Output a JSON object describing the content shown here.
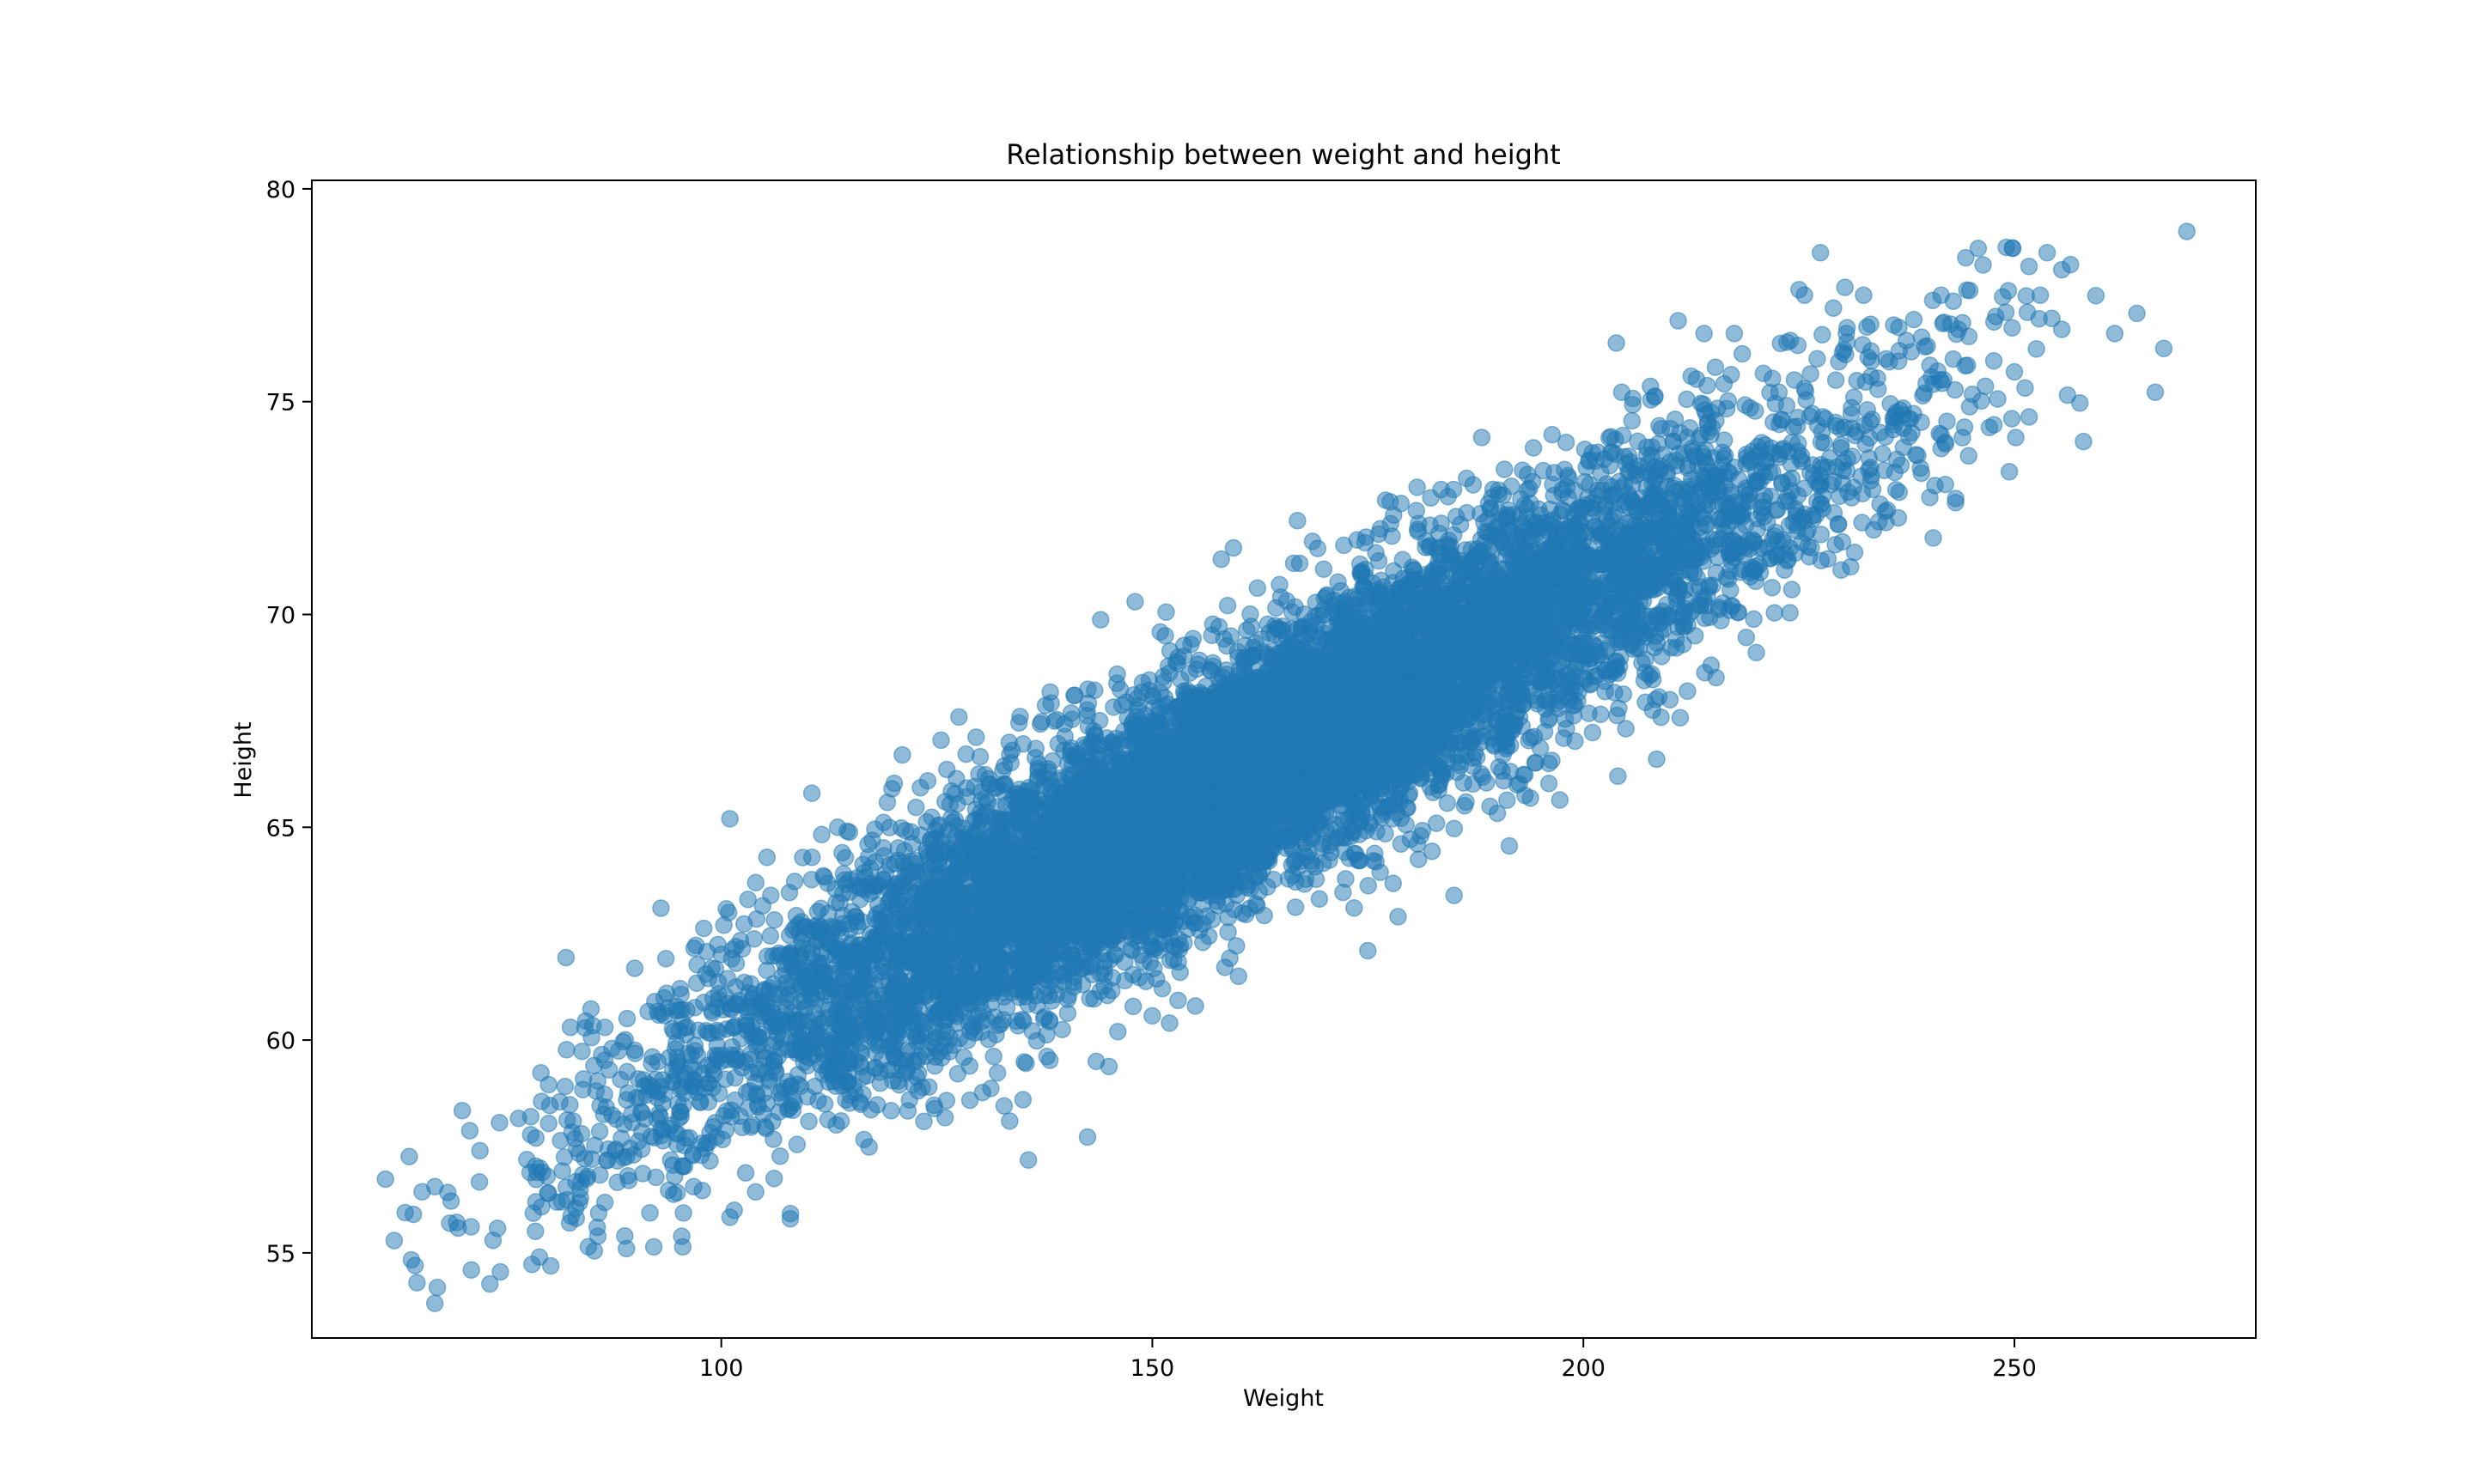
{
  "chart_data": {
    "type": "scatter",
    "title": "Relationship between weight and height",
    "xlabel": "Weight",
    "ylabel": "Height",
    "xlim": [
      52.5,
      278
    ],
    "ylim": [
      53,
      80.2
    ],
    "xticks": [
      100,
      150,
      200,
      250
    ],
    "xtick_labels": [
      "100",
      "150",
      "200",
      "250"
    ],
    "yticks": [
      55,
      60,
      65,
      70,
      75,
      80
    ],
    "ytick_labels": [
      "55",
      "60",
      "65",
      "70",
      "75",
      "80"
    ],
    "grid": false,
    "legend": false,
    "marker_color": "#1f77b4",
    "marker_alpha": 0.5,
    "generated_cloud": {
      "count": 10000,
      "x_mean": 161.4,
      "x_sd": 32.1,
      "y_mean": 66.37,
      "y_sd": 3.85,
      "correlation": 0.92
    },
    "visible_points": [
      [
        64.7,
        54.3
      ],
      [
        68.5,
        55.7
      ],
      [
        71.0,
        54.6
      ],
      [
        72.0,
        57.4
      ],
      [
        77.9,
        58.2
      ],
      [
        78.5,
        56.2
      ],
      [
        78.9,
        54.9
      ],
      [
        79.8,
        56.8
      ],
      [
        81.5,
        56.2
      ],
      [
        82.5,
        60.3
      ],
      [
        83.8,
        57.8
      ],
      [
        84.5,
        56.8
      ],
      [
        85.6,
        55.6
      ],
      [
        86.5,
        60.3
      ],
      [
        87.0,
        59.3
      ],
      [
        88.8,
        55.4
      ],
      [
        89.0,
        55.1
      ],
      [
        93.0,
        63.1
      ],
      [
        96.0,
        60.7
      ],
      [
        100.3,
        62.7
      ],
      [
        101.0,
        65.2
      ],
      [
        104.0,
        63.7
      ],
      [
        108.0,
        55.8
      ],
      [
        110.5,
        65.8
      ],
      [
        101.5,
        56.0
      ],
      [
        107.0,
        62.0
      ],
      [
        112.0,
        58.5
      ],
      [
        118.0,
        60.2
      ],
      [
        113.5,
        65.0
      ],
      [
        121.0,
        66.7
      ],
      [
        135.0,
        58.6
      ],
      [
        143.5,
        59.5
      ],
      [
        146.0,
        60.2
      ],
      [
        148.0,
        70.3
      ],
      [
        152.0,
        60.4
      ],
      [
        155.0,
        60.8
      ],
      [
        158.0,
        71.3
      ],
      [
        160.0,
        61.5
      ],
      [
        175.0,
        62.1
      ],
      [
        178.5,
        62.9
      ],
      [
        185.0,
        63.4
      ],
      [
        196.0,
        66.5
      ],
      [
        204.0,
        66.2
      ],
      [
        208.5,
        66.6
      ],
      [
        212.5,
        75.6
      ],
      [
        211.0,
        76.9
      ],
      [
        214.0,
        76.6
      ],
      [
        217.5,
        76.6
      ],
      [
        227.5,
        78.5
      ],
      [
        229.0,
        77.2
      ],
      [
        230.5,
        76.6
      ],
      [
        232.5,
        77.5
      ],
      [
        236.0,
        76.8
      ],
      [
        241.5,
        77.5
      ],
      [
        241.5,
        73.9
      ],
      [
        245.8,
        78.6
      ],
      [
        249.0,
        77.1
      ],
      [
        250.0,
        75.7
      ],
      [
        249.7,
        74.6
      ],
      [
        251.5,
        77.1
      ],
      [
        253.0,
        77.5
      ],
      [
        253.8,
        78.5
      ],
      [
        255.5,
        78.1
      ],
      [
        255.5,
        76.7
      ],
      [
        243.5,
        76.7
      ],
      [
        270.0,
        79.0
      ]
    ]
  }
}
